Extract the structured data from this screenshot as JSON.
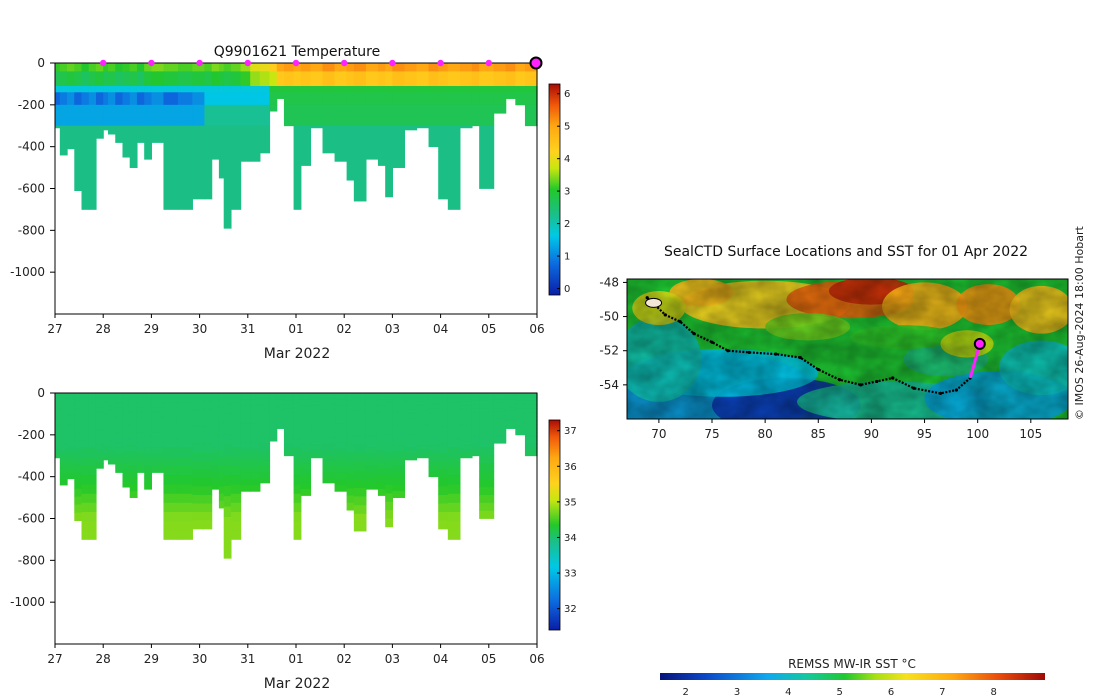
{
  "chart_data": [
    {
      "id": "temperature",
      "type": "heatmap",
      "title": "Q9901621  Temperature",
      "xlabel": "Mar 2022",
      "ylabel": "",
      "x_ticks": [
        "27",
        "28",
        "29",
        "30",
        "31",
        "01",
        "02",
        "03",
        "04",
        "05",
        "06"
      ],
      "y_ticks": [
        "0",
        "-200",
        "-400",
        "-600",
        "-800",
        "-1000"
      ],
      "ylim": [
        -1200,
        0
      ],
      "colorbar": {
        "ticks": [
          "0",
          "1",
          "2",
          "3",
          "4",
          "5",
          "6"
        ],
        "range": [
          -0.2,
          6.3
        ]
      },
      "surface_marker_days": [
        1,
        2,
        3,
        4,
        5,
        6,
        7,
        8,
        9
      ],
      "final_marker_day": 10,
      "profiles": [
        {
          "day": 0.0,
          "depth": 310,
          "surface": 3.1
        },
        {
          "day": 0.1,
          "depth": 440,
          "surface": 3.2
        },
        {
          "day": 0.25,
          "depth": 410,
          "surface": 3.3
        },
        {
          "day": 0.4,
          "depth": 610,
          "surface": 3.2
        },
        {
          "day": 0.55,
          "depth": 700,
          "surface": 3.0
        },
        {
          "day": 0.7,
          "depth": 700,
          "surface": 3.2
        },
        {
          "day": 0.85,
          "depth": 360,
          "surface": 3.3
        },
        {
          "day": 1.0,
          "depth": 320,
          "surface": 3.1
        },
        {
          "day": 1.1,
          "depth": 340,
          "surface": 3.2
        },
        {
          "day": 1.25,
          "depth": 380,
          "surface": 3.0
        },
        {
          "day": 1.4,
          "depth": 450,
          "surface": 3.1
        },
        {
          "day": 1.55,
          "depth": 500,
          "surface": 3.2
        },
        {
          "day": 1.7,
          "depth": 380,
          "surface": 3.0
        },
        {
          "day": 1.85,
          "depth": 460,
          "surface": 3.3
        },
        {
          "day": 2.0,
          "depth": 380,
          "surface": 3.4
        },
        {
          "day": 2.25,
          "depth": 700,
          "surface": 3.3
        },
        {
          "day": 2.55,
          "depth": 700,
          "surface": 3.2
        },
        {
          "day": 2.85,
          "depth": 650,
          "surface": 3.3
        },
        {
          "day": 3.1,
          "depth": 650,
          "surface": 3.2
        },
        {
          "day": 3.25,
          "depth": 460,
          "surface": 3.4
        },
        {
          "day": 3.4,
          "depth": 550,
          "surface": 3.3
        },
        {
          "day": 3.5,
          "depth": 790,
          "surface": 3.2
        },
        {
          "day": 3.65,
          "depth": 700,
          "surface": 3.3
        },
        {
          "day": 3.85,
          "depth": 470,
          "surface": 3.5
        },
        {
          "day": 4.05,
          "depth": 470,
          "surface": 3.9
        },
        {
          "day": 4.25,
          "depth": 430,
          "surface": 4.0
        },
        {
          "day": 4.45,
          "depth": 230,
          "surface": 4.3
        },
        {
          "day": 4.6,
          "depth": 170,
          "surface": 5.0
        },
        {
          "day": 4.75,
          "depth": 300,
          "surface": 5.1
        },
        {
          "day": 4.95,
          "depth": 700,
          "surface": 5.0
        },
        {
          "day": 5.1,
          "depth": 490,
          "surface": 5.1
        },
        {
          "day": 5.3,
          "depth": 310,
          "surface": 5.0
        },
        {
          "day": 5.55,
          "depth": 430,
          "surface": 5.2
        },
        {
          "day": 5.8,
          "depth": 470,
          "surface": 5.0
        },
        {
          "day": 6.05,
          "depth": 560,
          "surface": 5.1
        },
        {
          "day": 6.2,
          "depth": 660,
          "surface": 5.2
        },
        {
          "day": 6.45,
          "depth": 460,
          "surface": 5.0
        },
        {
          "day": 6.7,
          "depth": 490,
          "surface": 5.1
        },
        {
          "day": 6.85,
          "depth": 640,
          "surface": 5.0
        },
        {
          "day": 7.0,
          "depth": 500,
          "surface": 5.2
        },
        {
          "day": 7.25,
          "depth": 320,
          "surface": 5.1
        },
        {
          "day": 7.5,
          "depth": 310,
          "surface": 5.0
        },
        {
          "day": 7.75,
          "depth": 400,
          "surface": 5.2
        },
        {
          "day": 7.95,
          "depth": 650,
          "surface": 5.1
        },
        {
          "day": 8.15,
          "depth": 700,
          "surface": 5.0
        },
        {
          "day": 8.4,
          "depth": 310,
          "surface": 5.1
        },
        {
          "day": 8.65,
          "depth": 300,
          "surface": 5.2
        },
        {
          "day": 8.8,
          "depth": 600,
          "surface": 5.0
        },
        {
          "day": 9.1,
          "depth": 240,
          "surface": 5.1
        },
        {
          "day": 9.35,
          "depth": 170,
          "surface": 5.2
        },
        {
          "day": 9.55,
          "depth": 200,
          "surface": 5.0
        },
        {
          "day": 9.75,
          "depth": 300,
          "surface": 5.1
        }
      ]
    },
    {
      "id": "salinity",
      "type": "heatmap",
      "title": "",
      "xlabel": "Mar 2022",
      "ylabel": "",
      "x_ticks": [
        "27",
        "28",
        "29",
        "30",
        "31",
        "01",
        "02",
        "03",
        "04",
        "05",
        "06"
      ],
      "y_ticks": [
        "0",
        "-200",
        "-400",
        "-600",
        "-800",
        "-1000"
      ],
      "ylim": [
        -1200,
        0
      ],
      "colorbar": {
        "ticks": [
          "32",
          "33",
          "34",
          "35",
          "36",
          "37"
        ],
        "range": [
          31.4,
          37.3
        ]
      },
      "surface_value": 33.9,
      "deep_value": 34.7
    },
    {
      "id": "sst-map",
      "type": "heatmap",
      "title": "SealCTD Surface Locations and SST for 01 Apr 2022",
      "xlabel": "",
      "ylabel": "",
      "x_ticks": [
        "70",
        "75",
        "80",
        "85",
        "90",
        "95",
        "100",
        "105"
      ],
      "y_ticks": [
        "-48",
        "-50",
        "-52",
        "-54"
      ],
      "xlim": [
        67,
        108.5
      ],
      "ylim": [
        -56,
        -47.8
      ],
      "colorbar": {
        "label": "REMSS MW-IR SST °C",
        "ticks": [
          "2",
          "3",
          "4",
          "5",
          "6",
          "7",
          "8"
        ],
        "range": [
          1.5,
          9.0
        ]
      },
      "track": [
        [
          68.9,
          -48.9
        ],
        [
          69.6,
          -49.3
        ],
        [
          70.6,
          -49.9
        ],
        [
          72.0,
          -50.3
        ],
        [
          73.3,
          -51.0
        ],
        [
          75.0,
          -51.5
        ],
        [
          76.5,
          -52.0
        ],
        [
          78.5,
          -52.1
        ],
        [
          81.0,
          -52.2
        ],
        [
          83.3,
          -52.4
        ],
        [
          85.0,
          -53.1
        ],
        [
          87.0,
          -53.7
        ],
        [
          89.0,
          -54.0
        ],
        [
          90.5,
          -53.8
        ],
        [
          92.0,
          -53.6
        ],
        [
          94.0,
          -54.2
        ],
        [
          96.5,
          -54.5
        ],
        [
          98.0,
          -54.3
        ],
        [
          99.3,
          -53.6
        ]
      ],
      "recent_track": [
        [
          99.3,
          -53.6
        ],
        [
          100.2,
          -51.6
        ]
      ],
      "current_position": [
        100.2,
        -51.6
      ],
      "deployment_site": [
        69.5,
        -49.2
      ]
    }
  ],
  "watermark": "© IMOS 26-Aug-2024 18:00 Hobart"
}
